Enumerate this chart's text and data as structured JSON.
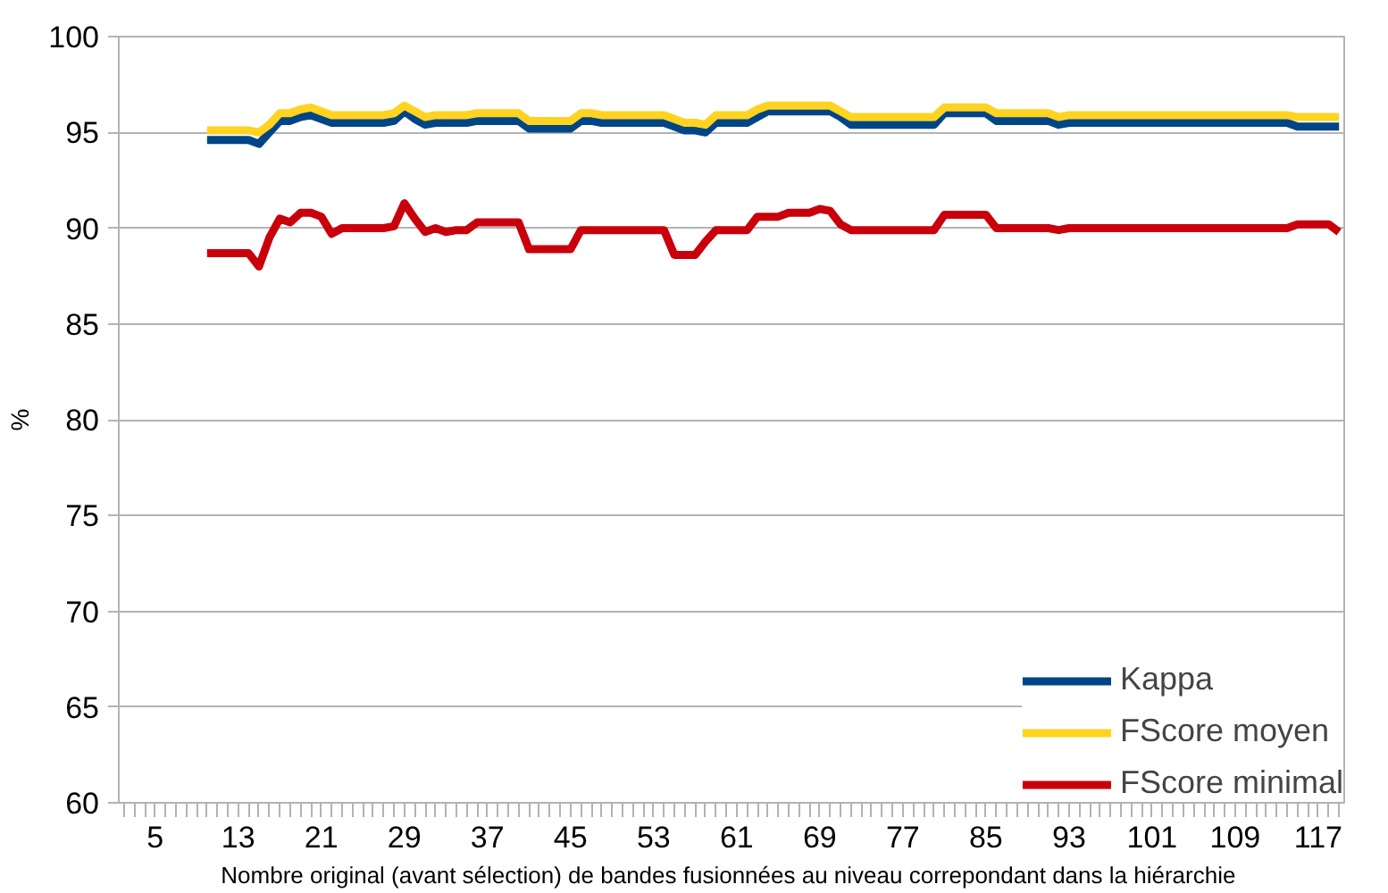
{
  "chart_data": {
    "type": "line",
    "xlabel": "Nombre original (avant sélection)  de bandes fusionnées au niveau correpondant dans la hiérarchie",
    "ylabel": "%",
    "categories": [
      null,
      null,
      null,
      "5",
      null,
      null,
      null,
      null,
      null,
      null,
      null,
      "13",
      null,
      null,
      null,
      null,
      null,
      null,
      null,
      "21",
      null,
      null,
      null,
      null,
      null,
      null,
      null,
      "29",
      null,
      null,
      null,
      null,
      null,
      null,
      null,
      "37",
      null,
      null,
      null,
      null,
      null,
      null,
      null,
      "45",
      null,
      null,
      null,
      null,
      null,
      null,
      null,
      "53",
      null,
      null,
      null,
      null,
      null,
      null,
      null,
      "61",
      null,
      null,
      null,
      null,
      null,
      null,
      null,
      "69",
      null,
      null,
      null,
      null,
      null,
      null,
      null,
      "77",
      null,
      null,
      null,
      null,
      null,
      null,
      null,
      "85",
      null,
      null,
      null,
      null,
      null,
      null,
      null,
      "93",
      null,
      null,
      null,
      null,
      null,
      null,
      null,
      "101",
      null,
      null,
      null,
      null,
      null,
      null,
      null,
      "109",
      null,
      null,
      null,
      null,
      null,
      null,
      null,
      "117",
      null,
      null
    ],
    "series": [
      {
        "name": "Kappa",
        "color": "#004586",
        "values": [
          null,
          null,
          null,
          null,
          null,
          null,
          null,
          null,
          94.6,
          94.6,
          94.6,
          94.6,
          94.6,
          94.4,
          95.0,
          95.6,
          95.6,
          95.8,
          95.9,
          95.7,
          95.5,
          95.5,
          95.5,
          95.5,
          95.5,
          95.5,
          95.6,
          96.1,
          95.7,
          95.4,
          95.5,
          95.5,
          95.5,
          95.5,
          95.6,
          95.6,
          95.6,
          95.6,
          95.6,
          95.2,
          95.2,
          95.2,
          95.2,
          95.2,
          95.6,
          95.6,
          95.5,
          95.5,
          95.5,
          95.5,
          95.5,
          95.5,
          95.5,
          95.3,
          95.1,
          95.1,
          95.0,
          95.5,
          95.5,
          95.5,
          95.5,
          95.8,
          96.1,
          96.1,
          96.1,
          96.1,
          96.1,
          96.1,
          96.1,
          95.8,
          95.4,
          95.4,
          95.4,
          95.4,
          95.4,
          95.4,
          95.4,
          95.4,
          95.4,
          96.0,
          96.0,
          96.0,
          96.0,
          96.0,
          95.6,
          95.6,
          95.6,
          95.6,
          95.6,
          95.6,
          95.4,
          95.5,
          95.5,
          95.5,
          95.5,
          95.5,
          95.5,
          95.5,
          95.5,
          95.5,
          95.5,
          95.5,
          95.5,
          95.5,
          95.5,
          95.5,
          95.5,
          95.5,
          95.5,
          95.5,
          95.5,
          95.5,
          95.5,
          95.3,
          95.3,
          95.3,
          95.3,
          95.3
        ]
      },
      {
        "name": "FScore moyen",
        "color": "#ffd320",
        "values": [
          null,
          null,
          null,
          null,
          null,
          null,
          null,
          null,
          95.1,
          95.1,
          95.1,
          95.1,
          95.1,
          95.0,
          95.4,
          96.0,
          96.0,
          96.2,
          96.3,
          96.1,
          95.9,
          95.9,
          95.9,
          95.9,
          95.9,
          95.9,
          96.0,
          96.4,
          96.1,
          95.8,
          95.9,
          95.9,
          95.9,
          95.9,
          96.0,
          96.0,
          96.0,
          96.0,
          96.0,
          95.6,
          95.6,
          95.6,
          95.6,
          95.6,
          96.0,
          96.0,
          95.9,
          95.9,
          95.9,
          95.9,
          95.9,
          95.9,
          95.9,
          95.7,
          95.5,
          95.5,
          95.4,
          95.9,
          95.9,
          95.9,
          95.9,
          96.2,
          96.4,
          96.4,
          96.4,
          96.4,
          96.4,
          96.4,
          96.4,
          96.1,
          95.8,
          95.8,
          95.8,
          95.8,
          95.8,
          95.8,
          95.8,
          95.8,
          95.8,
          96.3,
          96.3,
          96.3,
          96.3,
          96.3,
          96.0,
          96.0,
          96.0,
          96.0,
          96.0,
          96.0,
          95.8,
          95.9,
          95.9,
          95.9,
          95.9,
          95.9,
          95.9,
          95.9,
          95.9,
          95.9,
          95.9,
          95.9,
          95.9,
          95.9,
          95.9,
          95.9,
          95.9,
          95.9,
          95.9,
          95.9,
          95.9,
          95.9,
          95.9,
          95.8,
          95.8,
          95.8,
          95.8,
          95.8
        ]
      },
      {
        "name": "FScore minimal",
        "color": "#c9000b",
        "values": [
          null,
          null,
          null,
          null,
          null,
          null,
          null,
          null,
          88.7,
          88.7,
          88.7,
          88.7,
          88.7,
          88.0,
          89.5,
          90.5,
          90.3,
          90.8,
          90.8,
          90.6,
          89.7,
          90.0,
          90.0,
          90.0,
          90.0,
          90.0,
          90.1,
          91.3,
          90.5,
          89.8,
          90.0,
          89.8,
          89.9,
          89.9,
          90.3,
          90.3,
          90.3,
          90.3,
          90.3,
          88.9,
          88.9,
          88.9,
          88.9,
          88.9,
          89.9,
          89.9,
          89.9,
          89.9,
          89.9,
          89.9,
          89.9,
          89.9,
          89.9,
          88.6,
          88.6,
          88.6,
          89.3,
          89.9,
          89.9,
          89.9,
          89.9,
          90.6,
          90.6,
          90.6,
          90.8,
          90.8,
          90.8,
          91.0,
          90.9,
          90.2,
          89.9,
          89.9,
          89.9,
          89.9,
          89.9,
          89.9,
          89.9,
          89.9,
          89.9,
          90.7,
          90.7,
          90.7,
          90.7,
          90.7,
          90.0,
          90.0,
          90.0,
          90.0,
          90.0,
          90.0,
          89.9,
          90.0,
          90.0,
          90.0,
          90.0,
          90.0,
          90.0,
          90.0,
          90.0,
          90.0,
          90.0,
          90.0,
          90.0,
          90.0,
          90.0,
          90.0,
          90.0,
          90.0,
          90.0,
          90.0,
          90.0,
          90.0,
          90.0,
          90.2,
          90.2,
          90.2,
          90.2,
          89.8
        ]
      }
    ],
    "ylim": [
      60,
      100
    ],
    "yticks": [
      60,
      65,
      70,
      75,
      80,
      85,
      90,
      95,
      100
    ],
    "grid": "y",
    "legend": "bottom right",
    "line_style": "solid",
    "marker": "none"
  }
}
